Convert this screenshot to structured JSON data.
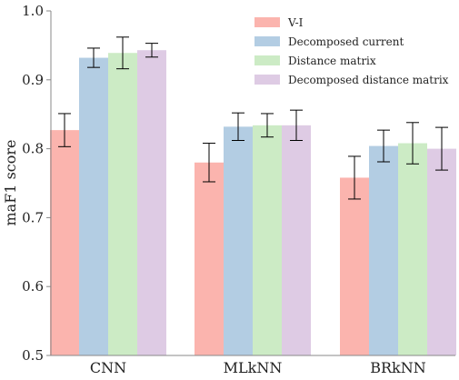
{
  "chart_data": {
    "type": "bar",
    "title": "",
    "xlabel": "",
    "ylabel": "maF1 score",
    "ylim": [
      0.5,
      1.0
    ],
    "yticks": [
      0.5,
      0.6,
      0.7,
      0.8,
      0.9,
      1.0
    ],
    "grid": false,
    "legend_position": "top-right",
    "categories": [
      "CNN",
      "MLkNN",
      "BRkNN"
    ],
    "series": [
      {
        "name": "V-I",
        "color": "#fbb4ae",
        "values": [
          0.827,
          0.78,
          0.758
        ],
        "errors": [
          0.024,
          0.028,
          0.031
        ]
      },
      {
        "name": "Decomposed current",
        "color": "#b3cde3",
        "values": [
          0.932,
          0.832,
          0.804
        ],
        "errors": [
          0.014,
          0.02,
          0.023
        ]
      },
      {
        "name": "Distance matrix",
        "color": "#ccebc5",
        "values": [
          0.939,
          0.834,
          0.808
        ],
        "errors": [
          0.023,
          0.017,
          0.03
        ]
      },
      {
        "name": "Decomposed distance matrix",
        "color": "#decbe4",
        "values": [
          0.943,
          0.834,
          0.8
        ],
        "errors": [
          0.01,
          0.022,
          0.031
        ]
      }
    ]
  }
}
